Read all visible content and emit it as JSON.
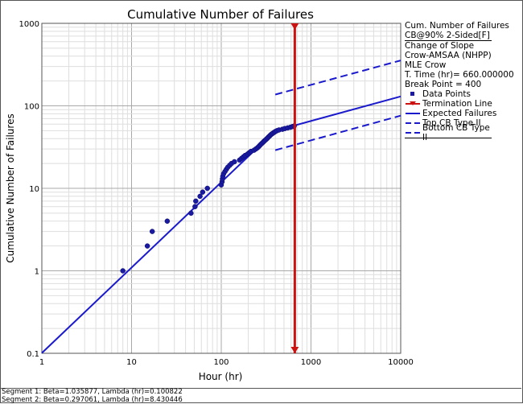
{
  "chart_data": {
    "type": "scatter",
    "title": "Cumulative Number of Failures",
    "xlabel": "Hour (hr)",
    "ylabel": "Cumulative Number of Failures",
    "xscale": "log",
    "yscale": "log",
    "xlim": [
      1,
      10000
    ],
    "ylim": [
      0.1,
      1000
    ],
    "x_ticks": [
      "1",
      "10",
      "100",
      "1000",
      "10000"
    ],
    "y_ticks": [
      "0.1",
      "1",
      "10",
      "100",
      "1000"
    ],
    "grid": true,
    "legend_position": "right",
    "legend": {
      "title_line1": "Cum. Number of Failures",
      "title_line2": "CB@90% 2-Sided[F]",
      "info": [
        "Change of Slope",
        "Crow-AMSAA (NHPP)",
        "MLE Crow",
        "T. Time (hr)= 660.000000",
        "Break Point = 400"
      ],
      "entries": [
        {
          "label": "Data Points",
          "style": "square",
          "color": "#1a1aa0"
        },
        {
          "label": "Termination Line",
          "style": "red-line",
          "color": "#cc1111"
        },
        {
          "label": "Expected Failures",
          "style": "solid",
          "color": "#1a1acc"
        },
        {
          "label": "Top CB Type II",
          "style": "dashed",
          "color": "#1a1acc"
        },
        {
          "label": "Bottom CB Type II",
          "style": "dashed",
          "color": "#1a1acc"
        }
      ]
    },
    "series": [
      {
        "name": "Data Points",
        "points": [
          [
            8,
            1
          ],
          [
            15,
            2
          ],
          [
            17,
            3
          ],
          [
            25,
            4
          ],
          [
            46,
            5
          ],
          [
            51,
            6
          ],
          [
            52,
            7
          ],
          [
            58,
            8
          ],
          [
            62,
            9
          ],
          [
            70,
            10
          ],
          [
            100,
            11
          ],
          [
            102,
            12
          ],
          [
            103,
            13
          ],
          [
            104,
            14
          ],
          [
            106,
            15
          ],
          [
            110,
            16
          ],
          [
            114,
            17
          ],
          [
            118,
            18
          ],
          [
            124,
            19
          ],
          [
            130,
            20
          ],
          [
            140,
            21
          ],
          [
            160,
            22
          ],
          [
            168,
            23
          ],
          [
            176,
            24
          ],
          [
            184,
            25
          ],
          [
            196,
            26
          ],
          [
            205,
            27
          ],
          [
            214,
            28
          ],
          [
            232,
            29
          ],
          [
            243,
            30
          ],
          [
            253,
            31
          ],
          [
            261,
            32
          ],
          [
            268,
            33
          ],
          [
            275,
            34
          ],
          [
            283,
            35
          ],
          [
            291,
            36
          ],
          [
            298,
            37
          ],
          [
            306,
            38
          ],
          [
            315,
            39
          ],
          [
            323,
            40
          ],
          [
            330,
            41
          ],
          [
            337,
            42
          ],
          [
            345,
            43
          ],
          [
            352,
            44
          ],
          [
            360,
            45
          ],
          [
            370,
            46
          ],
          [
            380,
            47
          ],
          [
            392,
            48
          ],
          [
            403,
            49
          ],
          [
            418,
            50
          ],
          [
            440,
            51
          ],
          [
            480,
            52
          ],
          [
            510,
            53
          ],
          [
            550,
            54
          ],
          [
            590,
            55
          ],
          [
            620,
            56
          ],
          [
            650,
            57
          ]
        ]
      },
      {
        "name": "Expected Failures",
        "segments": [
          [
            [
              1,
              0.1008
            ],
            [
              400,
              49.9
            ]
          ],
          [
            [
              400,
              49.9
            ],
            [
              10000,
              130
            ]
          ]
        ]
      },
      {
        "name": "Top CB Type II",
        "points": [
          [
            400,
            137
          ],
          [
            10000,
            355
          ]
        ]
      },
      {
        "name": "Bottom CB Type II",
        "points": [
          [
            400,
            29
          ],
          [
            10000,
            76
          ]
        ]
      },
      {
        "name": "Termination Line",
        "x": 660
      }
    ]
  },
  "footer": {
    "segment1": "Segment 1: Beta=1.035877, Lambda (hr)=0.100822",
    "segment2": "Segment 2: Beta=0.297061, Lambda (hr)=8.430446"
  }
}
